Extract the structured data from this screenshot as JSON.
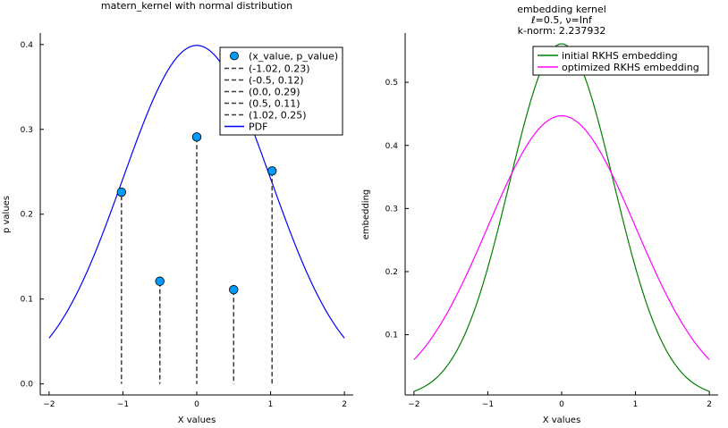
{
  "chart_data": [
    {
      "type": "scatter",
      "title": "matern_kernel with normal distribution",
      "xlabel": "X values",
      "ylabel": "p values",
      "xlim": [
        -2.12,
        2.12
      ],
      "ylim": [
        -0.013,
        0.4135
      ],
      "xticks": [
        -2,
        -1,
        0,
        1,
        2
      ],
      "xtick_labels": [
        "−2",
        "−1",
        "0",
        "1",
        "2"
      ],
      "yticks": [
        0.0,
        0.1,
        0.2,
        0.3,
        0.4
      ],
      "ytick_labels": [
        "0.0",
        "0.1",
        "0.2",
        "0.3",
        "0.4"
      ],
      "legend_position": "top-right",
      "points": {
        "name": "(x_value, p_value)",
        "color": "#009AFA",
        "x": [
          -1.02,
          -0.5,
          0.0,
          0.5,
          1.02
        ],
        "y": [
          0.226,
          0.121,
          0.291,
          0.111,
          0.251
        ]
      },
      "stems": [
        {
          "name": "(-1.02, 0.23)",
          "x": -1.02,
          "y": 0.23,
          "color": "#3a3a3a"
        },
        {
          "name": "(-0.5, 0.12)",
          "x": -0.5,
          "y": 0.12,
          "color": "#3a3a3a"
        },
        {
          "name": "(0.0, 0.29)",
          "x": 0.0,
          "y": 0.29,
          "color": "#3a3a3a"
        },
        {
          "name": "(0.5, 0.11)",
          "x": 0.5,
          "y": 0.11,
          "color": "#3a3a3a"
        },
        {
          "name": "(1.02, 0.25)",
          "x": 1.02,
          "y": 0.25,
          "color": "#3a3a3a"
        }
      ],
      "curve": {
        "name": "PDF",
        "color": "#0000FF",
        "function": "normal_pdf",
        "mean": 0,
        "std": 1,
        "x_range": [
          -2,
          2
        ]
      }
    },
    {
      "type": "line",
      "title": "embedding kernel",
      "subtitle_1": "ℓ=0.5, ν=Inf",
      "subtitle_2": "k-norm: 2.237932",
      "xlabel": "X values",
      "ylabel": "embedding",
      "xlim": [
        -2.12,
        2.12
      ],
      "ylim": [
        0.0045,
        0.5781
      ],
      "xticks": [
        -2,
        -1,
        0,
        1,
        2
      ],
      "xtick_labels": [
        "−2",
        "−1",
        "0",
        "1",
        "2"
      ],
      "yticks": [
        0.1,
        0.2,
        0.3,
        0.4,
        0.5
      ],
      "ytick_labels": [
        "0.1",
        "0.2",
        "0.3",
        "0.4",
        "0.5"
      ],
      "legend_position": "top-right",
      "series": [
        {
          "name": "initial RKHS embedding",
          "color": "#008000",
          "function": "gaussian",
          "amplitude": 0.561,
          "scale": 0.7071,
          "x_range": [
            -2,
            2
          ]
        },
        {
          "name": "optimized RKHS embedding",
          "color": "#FF00FF",
          "function": "gaussian",
          "amplitude": 0.447,
          "scale": 1.0,
          "x_range": [
            -2,
            2
          ]
        }
      ]
    }
  ]
}
